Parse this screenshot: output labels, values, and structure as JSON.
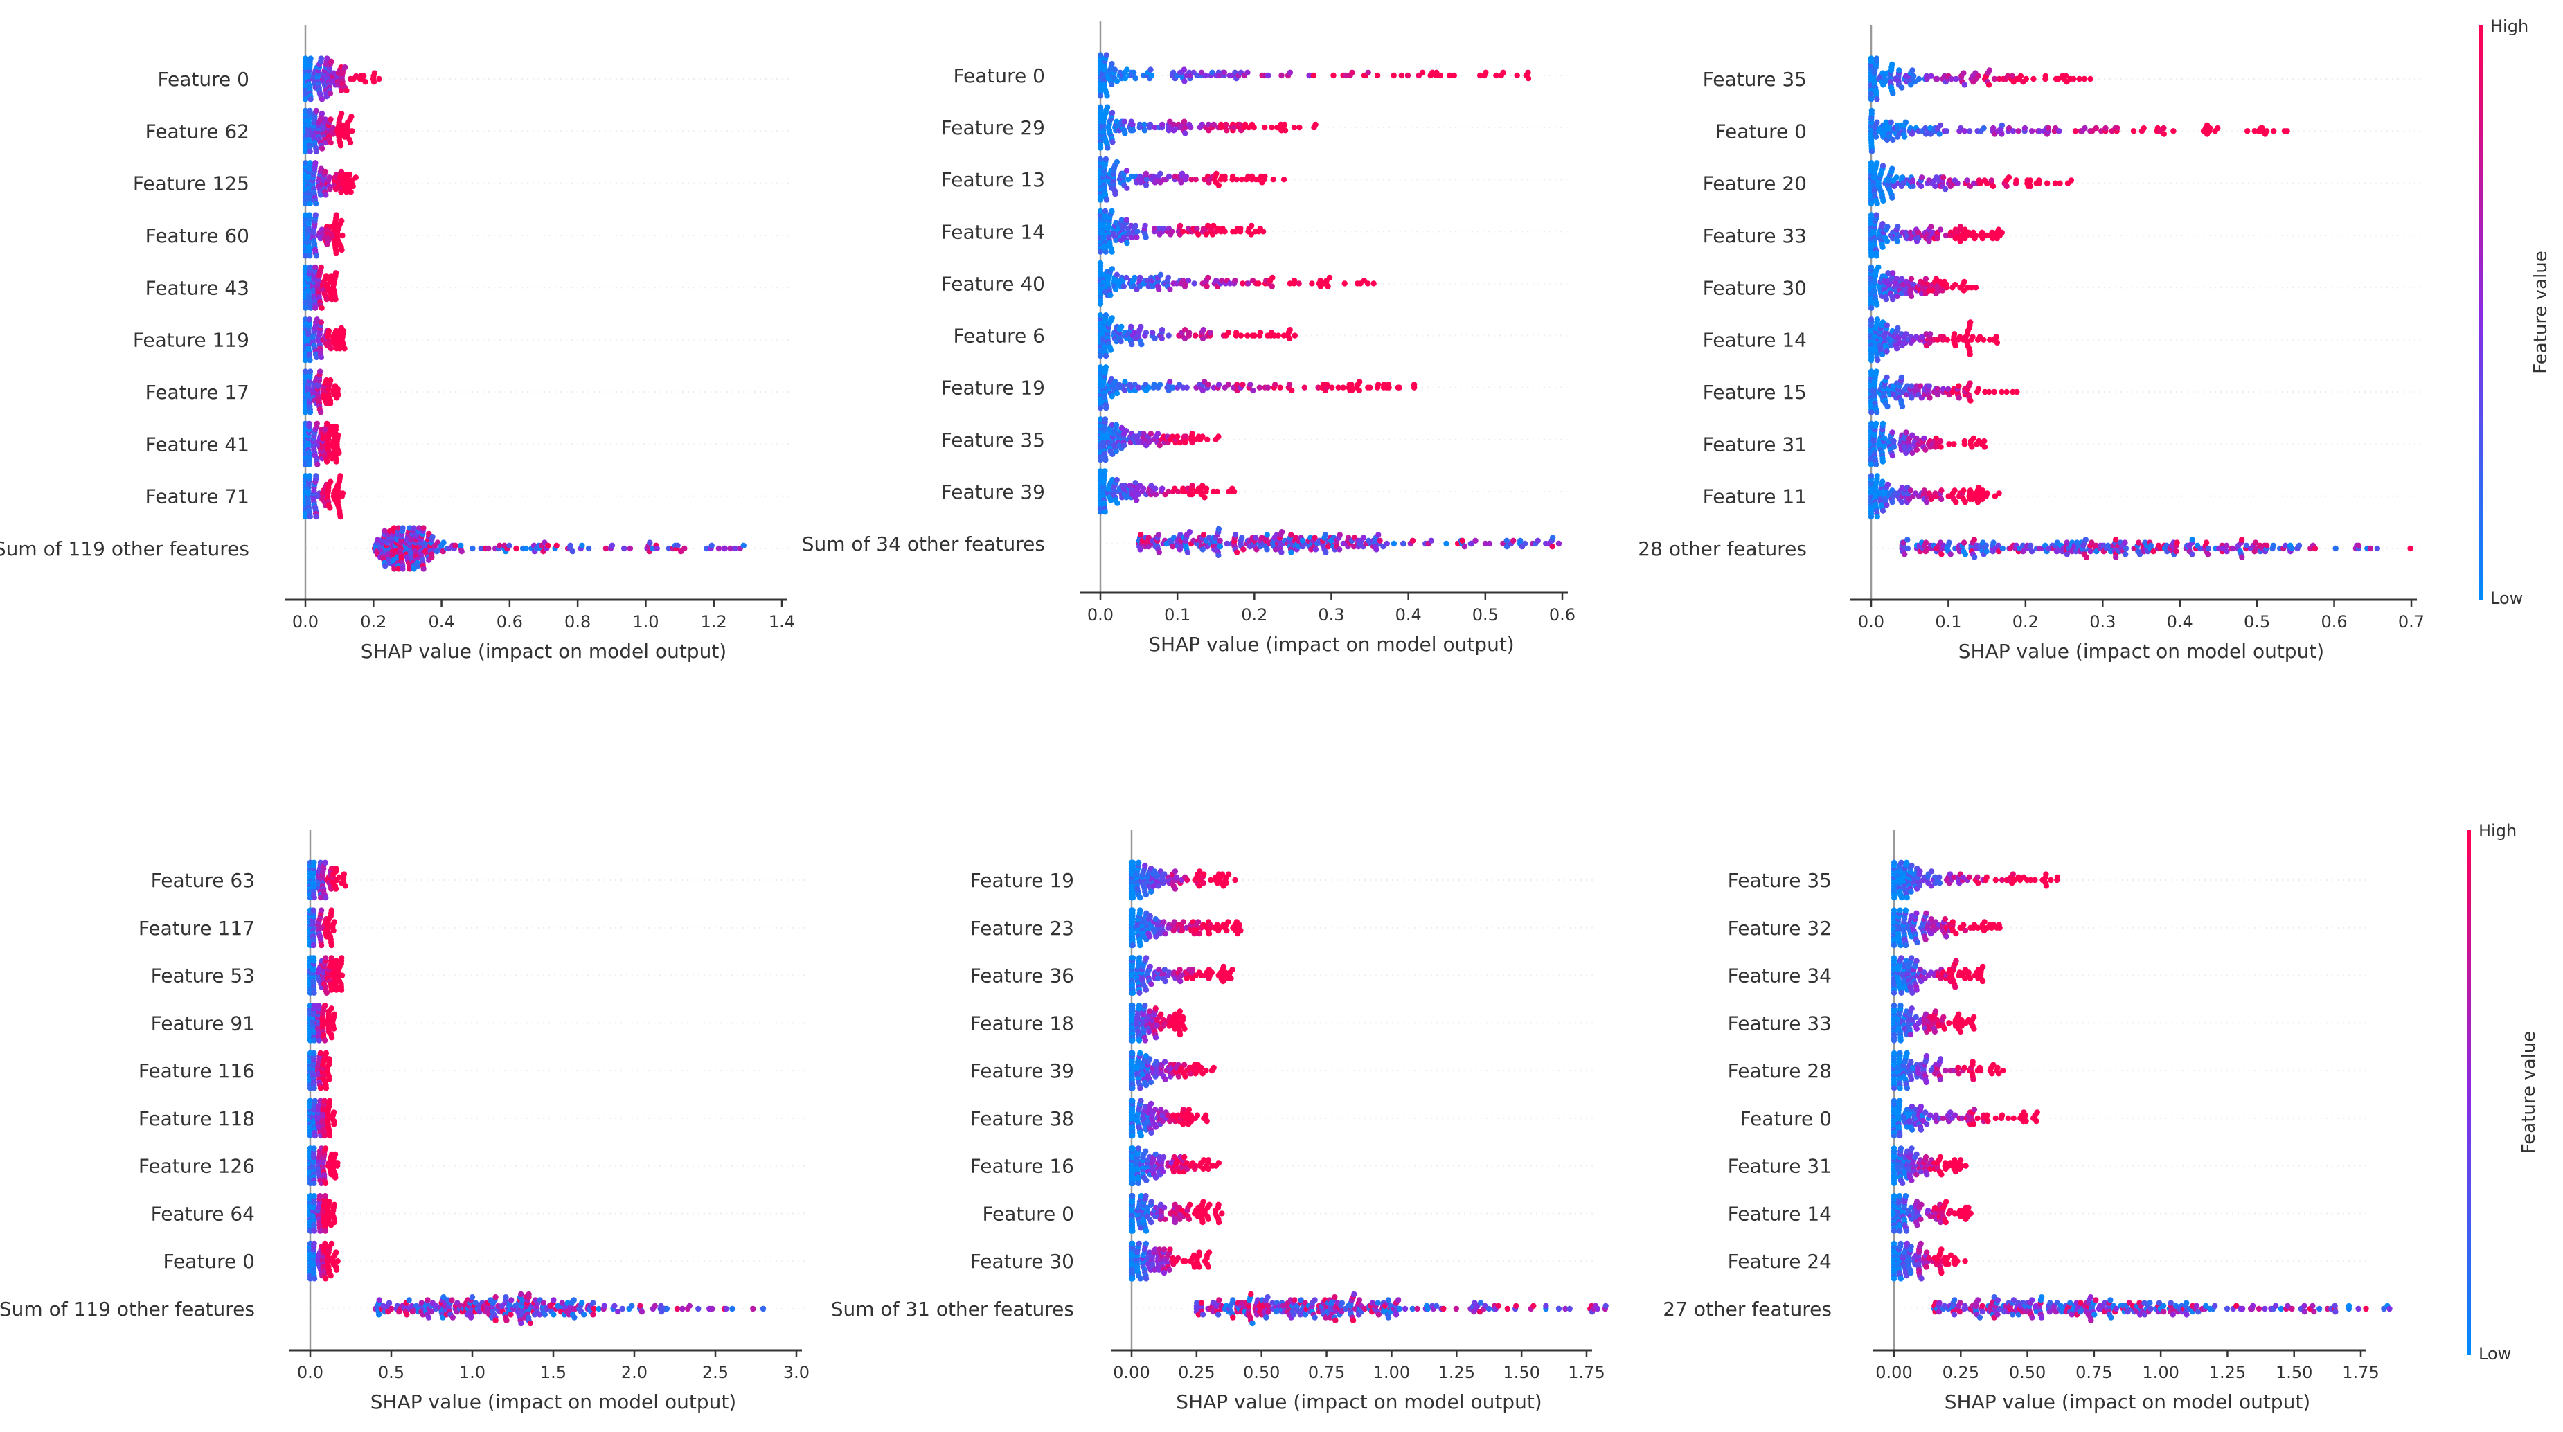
{
  "chart_data": [
    {
      "type": "scatter",
      "subtype": "shap-beeswarm",
      "xlabel": "SHAP value (impact on model output)",
      "xlim": [
        0,
        1.4
      ],
      "xticks": [
        "0.0",
        "0.2",
        "0.4",
        "0.6",
        "0.8",
        "1.0",
        "1.2",
        "1.4"
      ],
      "features": [
        {
          "name": "Feature 0",
          "min": 0,
          "max": 0.22
        },
        {
          "name": "Feature 62",
          "min": 0,
          "max": 0.14
        },
        {
          "name": "Feature 125",
          "min": 0,
          "max": 0.15
        },
        {
          "name": "Feature 60",
          "min": 0,
          "max": 0.12
        },
        {
          "name": "Feature 43",
          "min": 0,
          "max": 0.09
        },
        {
          "name": "Feature 119",
          "min": 0,
          "max": 0.12
        },
        {
          "name": "Feature 17",
          "min": 0,
          "max": 0.1
        },
        {
          "name": "Feature 41",
          "min": 0,
          "max": 0.1
        },
        {
          "name": "Feature 71",
          "min": 0,
          "max": 0.11
        },
        {
          "name": "Sum of 119 other features",
          "min": 0.2,
          "max": 1.33,
          "mode": 0.24
        }
      ]
    },
    {
      "type": "scatter",
      "subtype": "shap-beeswarm",
      "xlabel": "SHAP value (impact on model output)",
      "xlim": [
        0,
        0.6
      ],
      "xticks": [
        "0.0",
        "0.1",
        "0.2",
        "0.3",
        "0.4",
        "0.5",
        "0.6"
      ],
      "features": [
        {
          "name": "Feature 0",
          "min": 0,
          "max": 0.57
        },
        {
          "name": "Feature 29",
          "min": 0,
          "max": 0.28
        },
        {
          "name": "Feature 13",
          "min": 0,
          "max": 0.24
        },
        {
          "name": "Feature 14",
          "min": 0,
          "max": 0.22
        },
        {
          "name": "Feature 40",
          "min": 0,
          "max": 0.36
        },
        {
          "name": "Feature 6",
          "min": 0,
          "max": 0.26
        },
        {
          "name": "Feature 19",
          "min": 0,
          "max": 0.42
        },
        {
          "name": "Feature 35",
          "min": 0,
          "max": 0.16
        },
        {
          "name": "Feature 39",
          "min": 0,
          "max": 0.18
        },
        {
          "name": "Sum of 34 other features",
          "min": 0.05,
          "max": 0.6,
          "mode": 0.2
        }
      ]
    },
    {
      "type": "scatter",
      "subtype": "shap-beeswarm",
      "xlabel": "SHAP value (impact on model output)",
      "xlim": [
        0,
        0.7
      ],
      "xticks": [
        "0.0",
        "0.1",
        "0.2",
        "0.3",
        "0.4",
        "0.5",
        "0.6",
        "0.7"
      ],
      "colorbar": {
        "high": "High",
        "low": "Low",
        "label": "Feature value"
      },
      "features": [
        {
          "name": "Feature 35",
          "min": 0,
          "max": 0.29
        },
        {
          "name": "Feature 0",
          "min": 0,
          "max": 0.54
        },
        {
          "name": "Feature 20",
          "min": 0,
          "max": 0.26
        },
        {
          "name": "Feature 33",
          "min": 0,
          "max": 0.17
        },
        {
          "name": "Feature 30",
          "min": 0,
          "max": 0.14
        },
        {
          "name": "Feature 14",
          "min": 0,
          "max": 0.17
        },
        {
          "name": "Feature 15",
          "min": 0,
          "max": 0.2
        },
        {
          "name": "Feature 31",
          "min": 0,
          "max": 0.15
        },
        {
          "name": "Feature 11",
          "min": 0,
          "max": 0.17
        },
        {
          "name": "28 other features",
          "min": 0.04,
          "max": 0.7,
          "mode": 0.28
        }
      ]
    },
    {
      "type": "scatter",
      "subtype": "shap-beeswarm",
      "xlabel": "SHAP value (impact on model output)",
      "xlim": [
        0,
        3.0
      ],
      "xticks": [
        "0.0",
        "0.5",
        "1.0",
        "1.5",
        "2.0",
        "2.5",
        "3.0"
      ],
      "features": [
        {
          "name": "Feature 63",
          "min": 0,
          "max": 0.22
        },
        {
          "name": "Feature 117",
          "min": 0,
          "max": 0.15
        },
        {
          "name": "Feature 53",
          "min": 0,
          "max": 0.2
        },
        {
          "name": "Feature 91",
          "min": 0,
          "max": 0.15
        },
        {
          "name": "Feature 116",
          "min": 0,
          "max": 0.12
        },
        {
          "name": "Feature 118",
          "min": 0,
          "max": 0.15
        },
        {
          "name": "Feature 126",
          "min": 0,
          "max": 0.17
        },
        {
          "name": "Feature 64",
          "min": 0,
          "max": 0.15
        },
        {
          "name": "Feature 0",
          "min": 0,
          "max": 0.17
        },
        {
          "name": "Sum of 119 other features",
          "min": 0.4,
          "max": 2.85,
          "mode": 1.0
        }
      ]
    },
    {
      "type": "scatter",
      "subtype": "shap-beeswarm",
      "xlabel": "SHAP value (impact on model output)",
      "xlim": [
        0,
        1.75
      ],
      "xticks": [
        "0.00",
        "0.25",
        "0.50",
        "0.75",
        "1.00",
        "1.25",
        "1.50",
        "1.75"
      ],
      "features": [
        {
          "name": "Feature 19",
          "min": 0,
          "max": 0.4
        },
        {
          "name": "Feature 23",
          "min": 0,
          "max": 0.42
        },
        {
          "name": "Feature 36",
          "min": 0,
          "max": 0.39
        },
        {
          "name": "Feature 18",
          "min": 0,
          "max": 0.21
        },
        {
          "name": "Feature 39",
          "min": 0,
          "max": 0.33
        },
        {
          "name": "Feature 38",
          "min": 0,
          "max": 0.3
        },
        {
          "name": "Feature 16",
          "min": 0,
          "max": 0.34
        },
        {
          "name": "Feature 0",
          "min": 0,
          "max": 0.36
        },
        {
          "name": "Feature 30",
          "min": 0,
          "max": 0.3
        },
        {
          "name": "Sum of 31 other features",
          "min": 0.25,
          "max": 1.83,
          "mode": 0.6
        }
      ]
    },
    {
      "type": "scatter",
      "subtype": "shap-beeswarm",
      "xlabel": "SHAP value (impact on model output)",
      "xlim": [
        0,
        1.75
      ],
      "xticks": [
        "0.00",
        "0.25",
        "0.50",
        "0.75",
        "1.00",
        "1.25",
        "1.50",
        "1.75"
      ],
      "colorbar": {
        "high": "High",
        "low": "Low",
        "label": "Feature value"
      },
      "features": [
        {
          "name": "Feature 35",
          "min": 0,
          "max": 0.63
        },
        {
          "name": "Feature 32",
          "min": 0,
          "max": 0.4
        },
        {
          "name": "Feature 34",
          "min": 0,
          "max": 0.35
        },
        {
          "name": "Feature 33",
          "min": 0,
          "max": 0.3
        },
        {
          "name": "Feature 28",
          "min": 0,
          "max": 0.42
        },
        {
          "name": "Feature 0",
          "min": 0,
          "max": 0.54
        },
        {
          "name": "Feature 31",
          "min": 0,
          "max": 0.27
        },
        {
          "name": "Feature 14",
          "min": 0,
          "max": 0.3
        },
        {
          "name": "Feature 24",
          "min": 0,
          "max": 0.27
        },
        {
          "name": "27 other features",
          "min": 0.15,
          "max": 1.88,
          "mode": 0.6
        }
      ]
    }
  ],
  "colors": {
    "low": "#008bfb",
    "mid": "#8a2be2",
    "high": "#ff0052",
    "axis": "#333333",
    "grid": "#eeeeee"
  }
}
